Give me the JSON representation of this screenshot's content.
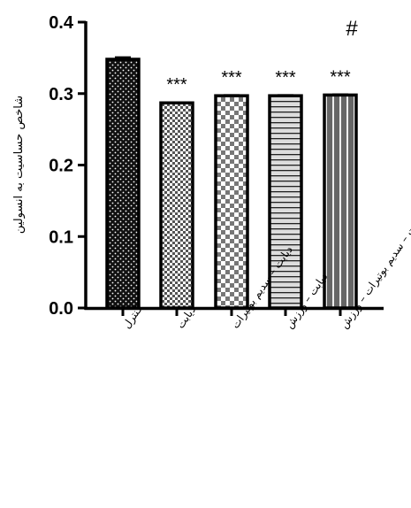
{
  "chart_data": {
    "type": "bar",
    "ylabel": "شاخص حساسیت به انسولین",
    "ylim": [
      0,
      0.4
    ],
    "yticks": [
      "0.0",
      "0.1",
      "0.2",
      "0.3",
      "0.4"
    ],
    "categories": [
      "کنترل",
      "دیابت",
      "دیابت – سدیم بوتیرات",
      "دیابت – ورزش",
      "دیابت – سدیم بوتیرات – ورزش"
    ],
    "values": [
      0.348,
      0.287,
      0.297,
      0.297,
      0.298
    ],
    "errors": [
      0.003,
      0.001,
      0.001,
      0.001,
      0.001
    ],
    "significance": [
      "",
      "***",
      "***",
      "***",
      "***"
    ],
    "extra_marker": "#",
    "fills": [
      "dots",
      "checker-small",
      "checker-large",
      "horizontal-lines",
      "vertical-stripes"
    ],
    "grid": false
  }
}
